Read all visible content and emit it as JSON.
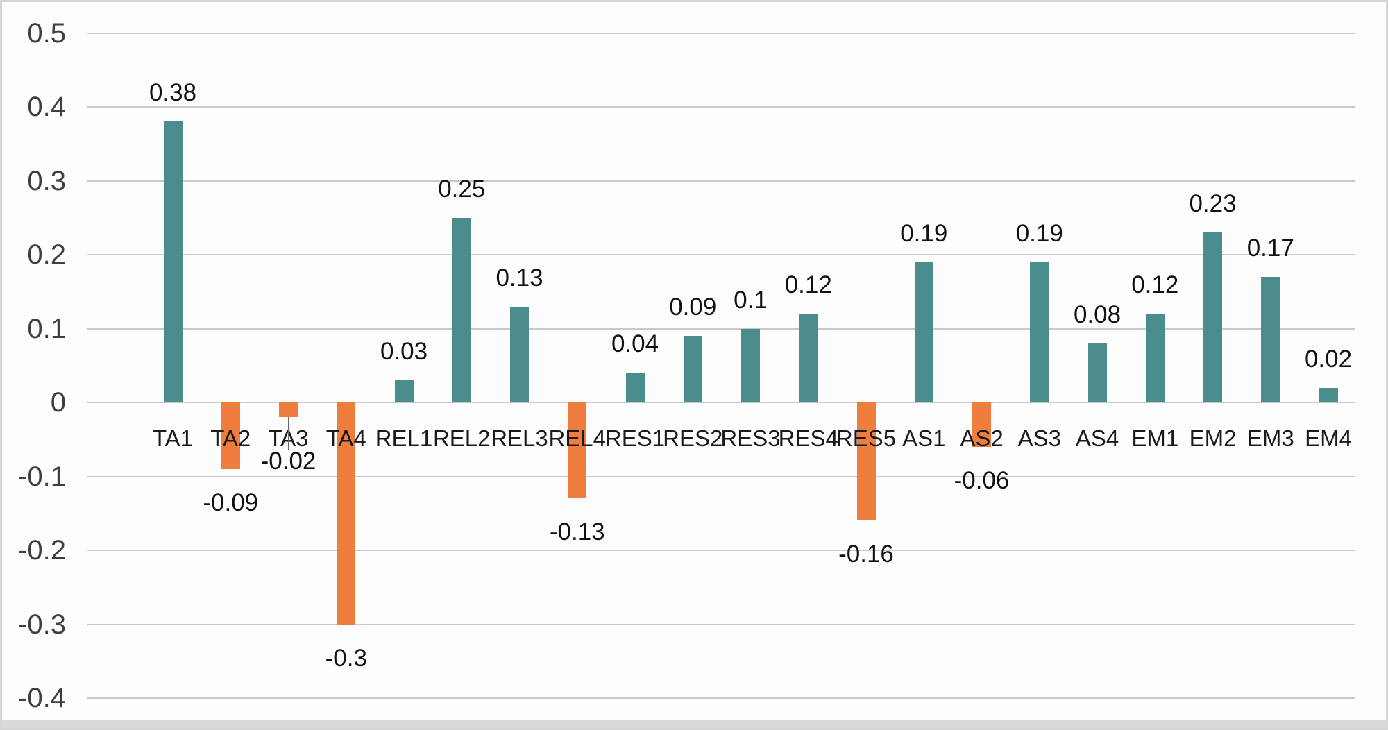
{
  "chart_data": {
    "type": "bar",
    "title": "",
    "xlabel": "",
    "ylabel": "",
    "categories": [
      "TA1",
      "TA2",
      "TA3",
      "TA4",
      "REL1",
      "REL2",
      "REL3",
      "REL4",
      "RES1",
      "RES2",
      "RES3",
      "RES4",
      "RES5",
      "AS1",
      "AS2",
      "AS3",
      "AS4",
      "EM1",
      "EM2",
      "EM3",
      "EM4"
    ],
    "values": [
      0.38,
      -0.09,
      -0.02,
      -0.3,
      0.03,
      0.25,
      0.13,
      -0.13,
      0.04,
      0.09,
      0.1,
      0.12,
      -0.16,
      0.19,
      -0.06,
      0.19,
      0.08,
      0.12,
      0.23,
      0.17,
      0.02
    ],
    "value_labels": [
      "0.38",
      "-0.09",
      "-0.02",
      "-0.3",
      "0.03",
      "0.25",
      "0.13",
      "-0.13",
      "0.04",
      "0.09",
      "0.1",
      "0.12",
      "-0.16",
      "0.19",
      "-0.06",
      "0.19",
      "0.08",
      "0.12",
      "0.23",
      "0.17",
      "0.02"
    ],
    "y_ticks": [
      "0.5",
      "0.4",
      "0.3",
      "0.2",
      "0.1",
      "0",
      "-0.1",
      "-0.2",
      "-0.3",
      "-0.4"
    ],
    "ylim": [
      -0.4,
      0.5
    ],
    "grid": true,
    "legend_position": "none",
    "colors": {
      "positive_bar": "#4b8c8d",
      "negative_bar": "#ee7d3e",
      "gridline": "#c9c9c9",
      "axis_text": "#3f3f3f",
      "label_text": "#111111"
    },
    "callout": {
      "category": "TA3",
      "label": "-0.02",
      "has_leader_line": true
    }
  }
}
